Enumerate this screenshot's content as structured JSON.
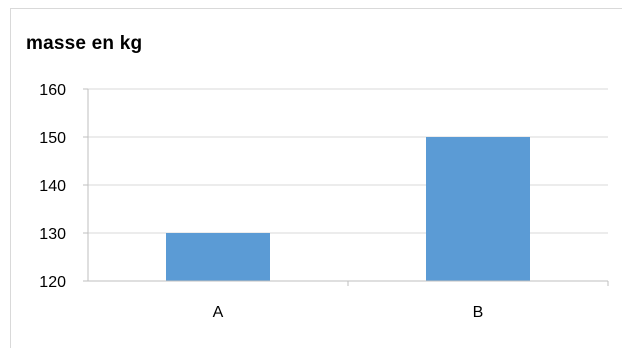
{
  "chart_data": {
    "type": "bar",
    "title": "masse en kg",
    "xlabel": "",
    "ylabel": "",
    "categories": [
      "A",
      "B"
    ],
    "values": [
      130,
      150
    ],
    "ylim": [
      120,
      160
    ],
    "yticks": [
      "120",
      "130",
      "140",
      "150",
      "160"
    ],
    "grid": true,
    "legend": "none",
    "colors": {
      "bar": "#5b9bd5",
      "grid": "#d9d9d9",
      "axis": "#bfbfbf"
    }
  }
}
